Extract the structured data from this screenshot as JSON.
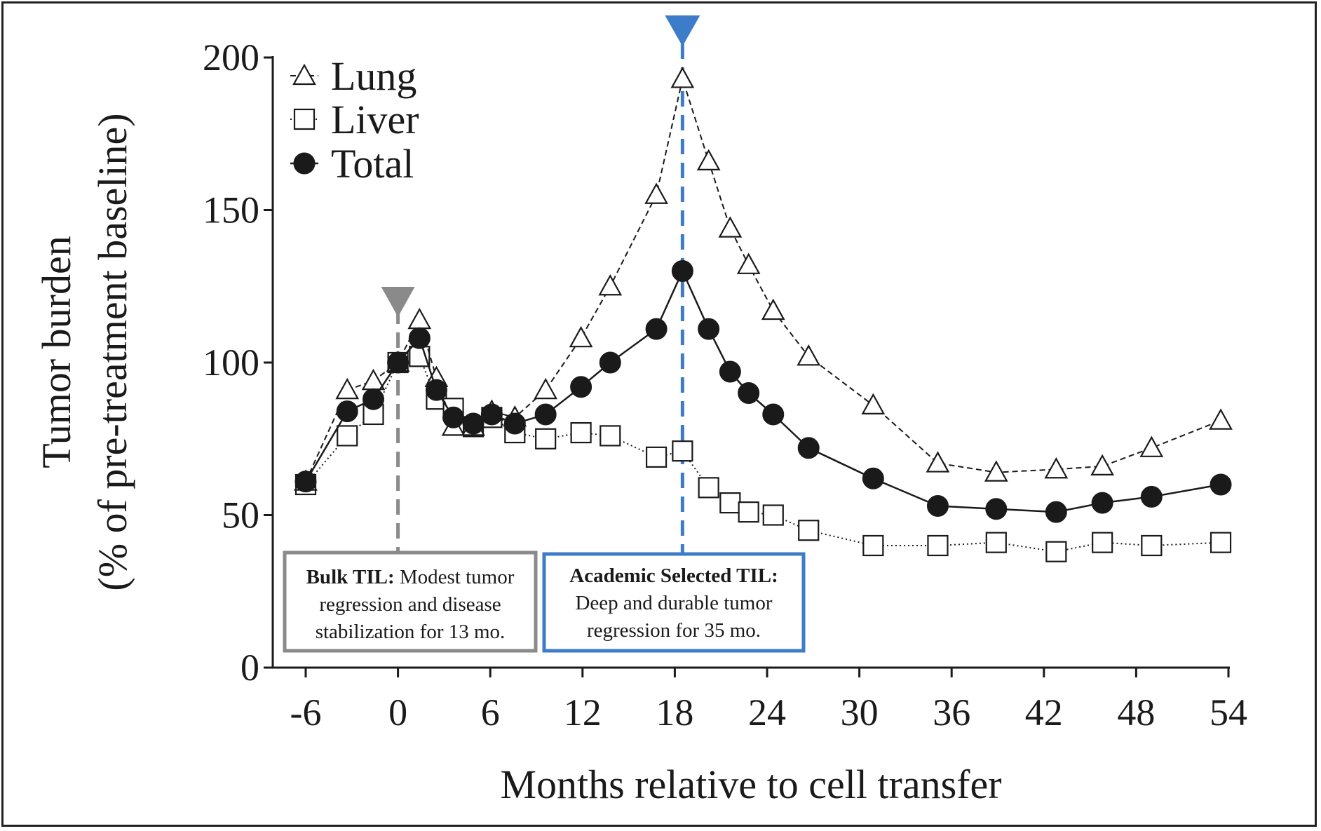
{
  "chart_data": {
    "type": "line",
    "xlabel": "Months relative to cell transfer",
    "ylabel_line1": "Tumor burden",
    "ylabel_line2": "(% of pre-treatment baseline)",
    "xlim": [
      -6,
      54
    ],
    "ylim": [
      0,
      200
    ],
    "xticks": [
      -6,
      0,
      6,
      12,
      18,
      24,
      30,
      36,
      42,
      48,
      54
    ],
    "yticks": [
      0,
      50,
      100,
      150,
      200
    ],
    "xtick_labels": [
      "-6",
      "0",
      "6",
      "12",
      "18",
      "24",
      "30",
      "36",
      "42",
      "48",
      "54"
    ],
    "ytick_labels": [
      "0",
      "50",
      "100",
      "150",
      "200"
    ],
    "legend_position": "top-left",
    "series": [
      {
        "name": "Lung",
        "marker": "triangle-open",
        "line": "dashed",
        "points": [
          [
            -6,
            61
          ],
          [
            -3.3,
            91
          ],
          [
            -1.6,
            94
          ],
          [
            0,
            100
          ],
          [
            1.4,
            114
          ],
          [
            2.5,
            95
          ],
          [
            3.6,
            79
          ],
          [
            4.9,
            79
          ],
          [
            6.1,
            84
          ],
          [
            7.6,
            82
          ],
          [
            9.6,
            91
          ],
          [
            11.9,
            108
          ],
          [
            13.8,
            125
          ],
          [
            16.8,
            155
          ],
          [
            18.5,
            193
          ],
          [
            20.2,
            166
          ],
          [
            21.6,
            144
          ],
          [
            22.8,
            132
          ],
          [
            24.4,
            117
          ],
          [
            26.7,
            102
          ],
          [
            30.9,
            86
          ],
          [
            35.1,
            67
          ],
          [
            38.9,
            64
          ],
          [
            42.8,
            65
          ],
          [
            45.8,
            66
          ],
          [
            49,
            72
          ],
          [
            53.5,
            81
          ]
        ]
      },
      {
        "name": "Liver",
        "marker": "square-open",
        "line": "dotted",
        "points": [
          [
            -6,
            60
          ],
          [
            -3.3,
            76
          ],
          [
            -1.6,
            83
          ],
          [
            0,
            100
          ],
          [
            1.4,
            102
          ],
          [
            2.5,
            88
          ],
          [
            3.6,
            85
          ],
          [
            4.9,
            79
          ],
          [
            6.1,
            82
          ],
          [
            7.6,
            77
          ],
          [
            9.6,
            75
          ],
          [
            11.9,
            77
          ],
          [
            13.8,
            76
          ],
          [
            16.8,
            69
          ],
          [
            18.5,
            71
          ],
          [
            20.2,
            59
          ],
          [
            21.6,
            54
          ],
          [
            22.8,
            51
          ],
          [
            24.4,
            50
          ],
          [
            26.7,
            45
          ],
          [
            30.9,
            40
          ],
          [
            35.1,
            40
          ],
          [
            38.9,
            41
          ],
          [
            42.8,
            38
          ],
          [
            45.8,
            41
          ],
          [
            49,
            40
          ],
          [
            53.5,
            41
          ]
        ]
      },
      {
        "name": "Total",
        "marker": "circle-filled",
        "line": "solid",
        "points": [
          [
            -6,
            61
          ],
          [
            -3.3,
            84
          ],
          [
            -1.6,
            88
          ],
          [
            0,
            100
          ],
          [
            1.4,
            108
          ],
          [
            2.5,
            91
          ],
          [
            3.6,
            82
          ],
          [
            4.9,
            80
          ],
          [
            6.1,
            83
          ],
          [
            7.6,
            80
          ],
          [
            9.6,
            83
          ],
          [
            11.9,
            92
          ],
          [
            13.8,
            100
          ],
          [
            16.8,
            111
          ],
          [
            18.5,
            130
          ],
          [
            20.2,
            111
          ],
          [
            21.6,
            97
          ],
          [
            22.8,
            90
          ],
          [
            24.4,
            83
          ],
          [
            26.7,
            72
          ],
          [
            30.9,
            62
          ],
          [
            35.1,
            53
          ],
          [
            38.9,
            52
          ],
          [
            42.8,
            51
          ],
          [
            45.8,
            54
          ],
          [
            49,
            56
          ],
          [
            53.5,
            60
          ]
        ]
      }
    ],
    "markers": [
      {
        "name": "bulk-til",
        "x": 0,
        "color": "#8a8a8a"
      },
      {
        "name": "academic-selected-til",
        "x": 18.5,
        "color": "#3d7cc9"
      }
    ],
    "annotations": {
      "bulk": {
        "bold": "Bulk TIL:",
        "line1_rest": " Modest tumor",
        "line2": "regression and disease",
        "line3": "stabilization for 13 mo.",
        "border_color": "#8a8a8a"
      },
      "academic": {
        "line1": "Academic Selected TIL:",
        "line2": "Deep and durable tumor",
        "line3": "regression for 35 mo.",
        "border_color": "#3d7cc9"
      }
    }
  }
}
